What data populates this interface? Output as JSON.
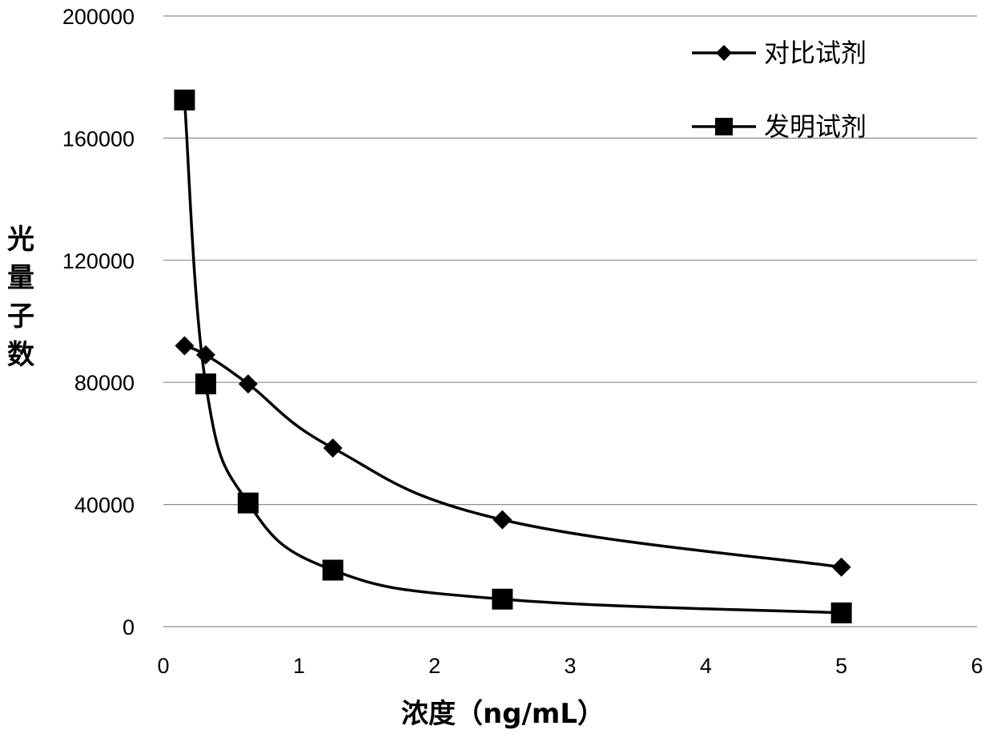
{
  "chart_data": {
    "type": "line",
    "xlabel": "浓度（ng/mL）",
    "ylabel": "光量子数",
    "xlim": [
      0,
      6
    ],
    "ylim": [
      0,
      200000
    ],
    "x_ticks": [
      "0",
      "1",
      "2",
      "3",
      "4",
      "5",
      "6"
    ],
    "y_ticks": [
      "0",
      "40000",
      "80000",
      "120000",
      "160000",
      "200000"
    ],
    "grid": "horizontal",
    "legend_position": "top-right",
    "series": [
      {
        "name": "对比试剂",
        "marker": "diamond",
        "x": [
          0.156,
          0.3125,
          0.625,
          1.25,
          2.5,
          5.0
        ],
        "values": [
          92000,
          89000,
          79500,
          58500,
          35000,
          19500
        ]
      },
      {
        "name": "发明试剂",
        "marker": "square",
        "x": [
          0.156,
          0.3125,
          0.625,
          1.25,
          2.5,
          5.0
        ],
        "values": [
          172500,
          79500,
          40500,
          18500,
          9000,
          4500
        ]
      }
    ]
  },
  "colors": {
    "line": "#000000",
    "grid": "#8c8c8c"
  }
}
